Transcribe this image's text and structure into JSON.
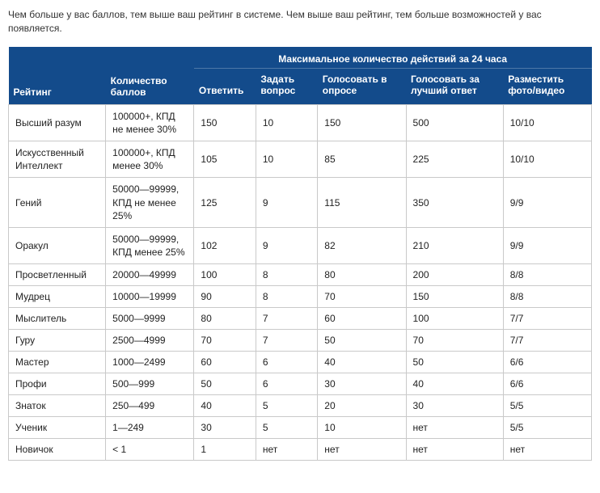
{
  "intro": "Чем больше у вас баллов, тем выше ваш рейтинг в системе. Чем выше ваш рейтинг, тем больше возможностей у вас появляется.",
  "table": {
    "header": {
      "rating": "Рейтинг",
      "points": "Количество баллов",
      "group": "Максимальное количество действий за 24 часа",
      "answer": "Ответить",
      "ask": "Задать вопрос",
      "vote_poll": "Голосовать в опросе",
      "vote_best": "Голосовать за лучший ответ",
      "upload": "Разместить фото/видео"
    },
    "rows": [
      {
        "tall": true,
        "rating": "Высший разум",
        "points": "100000+, КПД не менее 30%",
        "answer": "150",
        "ask": "10",
        "poll": "150",
        "best": "500",
        "media": "10/10"
      },
      {
        "tall": true,
        "rating": "Искусственный Интеллект",
        "points": "100000+, КПД менее 30%",
        "answer": "105",
        "ask": "10",
        "poll": "85",
        "best": "225",
        "media": "10/10"
      },
      {
        "tall": true,
        "rating": "Гений",
        "points": "50000—99999, КПД не менее 25%",
        "answer": "125",
        "ask": "9",
        "poll": "115",
        "best": "350",
        "media": "9/9"
      },
      {
        "tall": true,
        "rating": "Оракул",
        "points": "50000—99999, КПД менее 25%",
        "answer": "102",
        "ask": "9",
        "poll": "82",
        "best": "210",
        "media": "9/9"
      },
      {
        "tall": false,
        "rating": "Просветленный",
        "points": "20000—49999",
        "answer": "100",
        "ask": "8",
        "poll": "80",
        "best": "200",
        "media": "8/8"
      },
      {
        "tall": false,
        "rating": "Мудрец",
        "points": "10000—19999",
        "answer": "90",
        "ask": "8",
        "poll": "70",
        "best": "150",
        "media": "8/8"
      },
      {
        "tall": false,
        "rating": "Мыслитель",
        "points": "5000—9999",
        "answer": "80",
        "ask": "7",
        "poll": "60",
        "best": "100",
        "media": "7/7"
      },
      {
        "tall": false,
        "rating": "Гуру",
        "points": "2500—4999",
        "answer": "70",
        "ask": "7",
        "poll": "50",
        "best": "70",
        "media": "7/7"
      },
      {
        "tall": false,
        "rating": "Мастер",
        "points": "1000—2499",
        "answer": "60",
        "ask": "6",
        "poll": "40",
        "best": "50",
        "media": "6/6"
      },
      {
        "tall": false,
        "rating": "Профи",
        "points": "500—999",
        "answer": "50",
        "ask": "6",
        "poll": "30",
        "best": "40",
        "media": "6/6"
      },
      {
        "tall": false,
        "rating": "Знаток",
        "points": "250—499",
        "answer": "40",
        "ask": "5",
        "poll": "20",
        "best": "30",
        "media": "5/5"
      },
      {
        "tall": false,
        "rating": "Ученик",
        "points": "1—249",
        "answer": "30",
        "ask": "5",
        "poll": "10",
        "best": "нет",
        "media": "5/5"
      },
      {
        "tall": false,
        "rating": "Новичок",
        "points": "< 1",
        "answer": "1",
        "ask": "нет",
        "poll": "нет",
        "best": "нет",
        "media": "нет"
      }
    ]
  }
}
